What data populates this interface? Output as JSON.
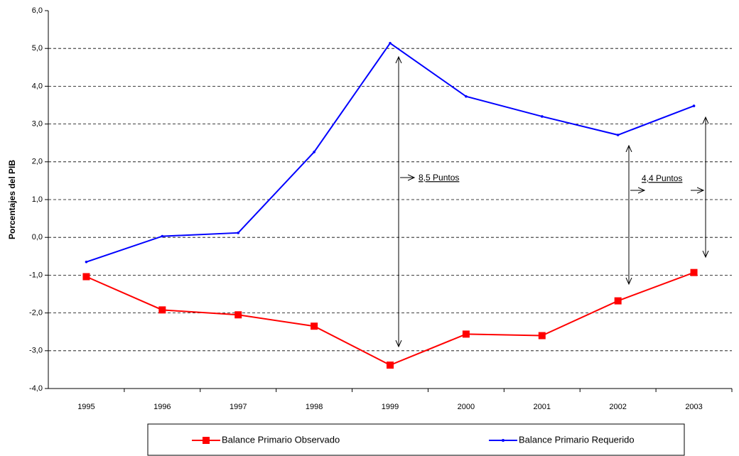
{
  "chart_data": {
    "type": "line",
    "y_label": "Porcentajes del PIB",
    "categories": [
      "1995",
      "1996",
      "1997",
      "1998",
      "1999",
      "2000",
      "2001",
      "2002",
      "2003"
    ],
    "series": [
      {
        "name": "Balance Primario Observado",
        "color": "#ff0000",
        "marker": "square",
        "values": [
          -1.04,
          -1.92,
          -2.05,
          -2.35,
          -3.38,
          -2.56,
          -2.6,
          -1.68,
          -0.93
        ]
      },
      {
        "name": "Balance Primario Requerido",
        "color": "#0000ff",
        "marker": "dot",
        "values": [
          -0.65,
          0.03,
          0.12,
          2.26,
          5.14,
          3.73,
          3.2,
          2.71,
          3.48
        ]
      }
    ],
    "ylim": [
      -4,
      6
    ],
    "yticks": [
      {
        "value": -4,
        "label": "-4,0"
      },
      {
        "value": -3,
        "label": "-3,0"
      },
      {
        "value": -2,
        "label": "-2,0"
      },
      {
        "value": -1,
        "label": "-1,0"
      },
      {
        "value": 0,
        "label": "0,0"
      },
      {
        "value": 1,
        "label": "1,0"
      },
      {
        "value": 2,
        "label": "2,0"
      },
      {
        "value": 3,
        "label": "3,0"
      },
      {
        "value": 4,
        "label": "4,0"
      },
      {
        "value": 5,
        "label": "5,0"
      },
      {
        "value": 6,
        "label": "6,0"
      }
    ],
    "grid": true,
    "legend": "bottom",
    "annotations": [
      "8,5 Puntos",
      "4,4 Puntos"
    ]
  }
}
